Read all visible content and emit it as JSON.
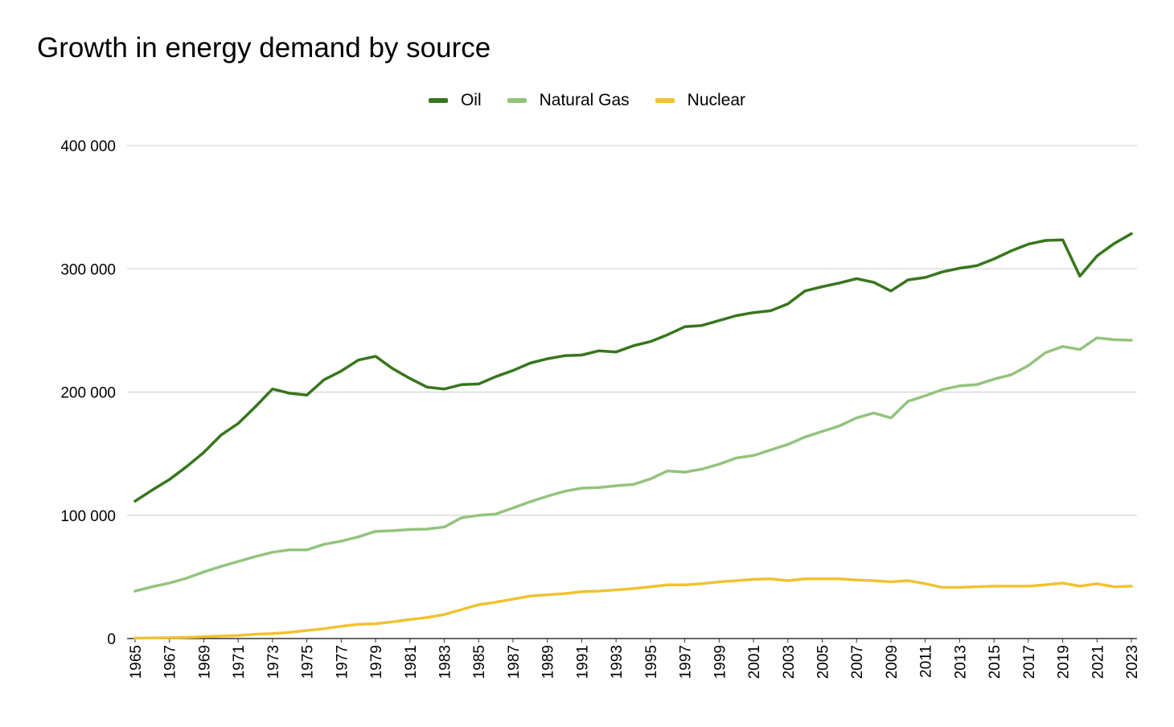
{
  "chart_data": {
    "type": "line",
    "title": "Growth in energy demand by source",
    "xlabel": "",
    "ylabel": "",
    "ylim": [
      0,
      400000
    ],
    "yticks": [
      0,
      100000,
      200000,
      300000,
      400000
    ],
    "ytick_labels": [
      "0",
      "100 000",
      "200 000",
      "300 000",
      "400 000"
    ],
    "grid": true,
    "legend_position": "top-center",
    "x": [
      1965,
      1966,
      1967,
      1968,
      1969,
      1970,
      1971,
      1972,
      1973,
      1974,
      1975,
      1976,
      1977,
      1978,
      1979,
      1980,
      1981,
      1982,
      1983,
      1984,
      1985,
      1986,
      1987,
      1988,
      1989,
      1990,
      1991,
      1992,
      1993,
      1994,
      1995,
      1996,
      1997,
      1998,
      1999,
      2000,
      2001,
      2002,
      2003,
      2004,
      2005,
      2006,
      2007,
      2008,
      2009,
      2010,
      2011,
      2012,
      2013,
      2014,
      2015,
      2016,
      2017,
      2018,
      2019,
      2020,
      2021,
      2022,
      2023
    ],
    "xtick_labels": [
      "1965",
      "1967",
      "1969",
      "1971",
      "1973",
      "1975",
      "1977",
      "1979",
      "1981",
      "1983",
      "1985",
      "1987",
      "1989",
      "1991",
      "1993",
      "1995",
      "1997",
      "1999",
      "2001",
      "2003",
      "2005",
      "2007",
      "2009",
      "2011",
      "2013",
      "2015",
      "2017",
      "2019",
      "2021",
      "2023"
    ],
    "series": [
      {
        "name": "Oil",
        "color": "#38761d",
        "values": [
          111500,
          120500,
          129000,
          139500,
          151000,
          165000,
          174500,
          188000,
          202500,
          199000,
          197500,
          210000,
          217000,
          226000,
          229000,
          219000,
          211000,
          204000,
          202500,
          206000,
          206500,
          212500,
          217500,
          223500,
          227000,
          229500,
          230000,
          233500,
          232500,
          237500,
          241000,
          246500,
          253000,
          254000,
          258000,
          262000,
          264500,
          266000,
          271500,
          282000,
          285500,
          288500,
          292000,
          289000,
          282000,
          291000,
          293000,
          297500,
          300500,
          302500,
          308000,
          314500,
          320000,
          323000,
          323500,
          294000,
          310500,
          320500,
          328500
        ]
      },
      {
        "name": "Natural Gas",
        "color": "#93c47d",
        "values": [
          38500,
          42000,
          45000,
          49000,
          54000,
          58500,
          62500,
          66500,
          70000,
          72000,
          72000,
          76500,
          79000,
          82500,
          87000,
          87500,
          88500,
          88800,
          90500,
          98000,
          100000,
          101000,
          106000,
          111000,
          115500,
          119500,
          122000,
          122500,
          124000,
          125000,
          129500,
          136000,
          135000,
          137500,
          141500,
          146500,
          148500,
          153000,
          157500,
          163500,
          168000,
          172500,
          179000,
          183000,
          179000,
          192500,
          197000,
          202000,
          205000,
          206000,
          210500,
          214000,
          221500,
          232000,
          237000,
          234500,
          244000,
          242500,
          242000
        ]
      },
      {
        "name": "Nuclear",
        "color": "#f1c232",
        "values": [
          300,
          500,
          700,
          1000,
          1500,
          2000,
          2500,
          3500,
          4000,
          5000,
          6500,
          8000,
          10000,
          11500,
          12000,
          13500,
          15500,
          17000,
          19500,
          23500,
          27500,
          29500,
          32000,
          34500,
          35500,
          36500,
          38000,
          38500,
          39500,
          40500,
          42000,
          43500,
          43500,
          44500,
          46000,
          47000,
          48000,
          48500,
          47000,
          48500,
          48500,
          48500,
          47500,
          47000,
          46000,
          47000,
          44500,
          41500,
          41500,
          42000,
          42500,
          42500,
          42500,
          43500,
          45000,
          42500,
          44500,
          42000,
          42500
        ]
      }
    ]
  }
}
